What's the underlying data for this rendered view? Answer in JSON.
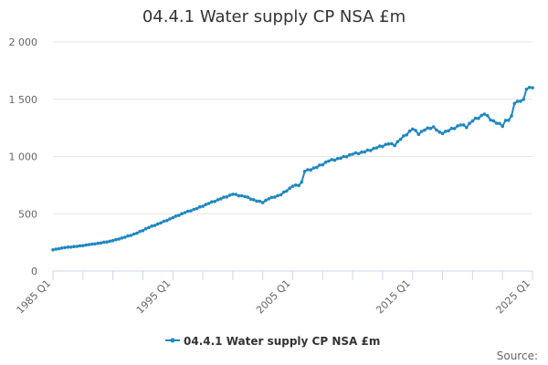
{
  "chart_data": {
    "type": "line",
    "title": "04.4.1 Water supply CP NSA £m",
    "series_name": "04.4.1 Water supply CP NSA £m",
    "color": "#1f87c1",
    "source_label": "Source:",
    "x_start_year": 1985,
    "x_end_year": 2025,
    "xlim": [
      1985,
      2025
    ],
    "ylim": [
      0,
      2000
    ],
    "y_ticks": [
      0,
      500,
      1000,
      1500,
      2000
    ],
    "y_tick_labels": [
      "0",
      "500",
      "1 000",
      "1 500",
      "2 000"
    ],
    "x_tick_labels": [
      {
        "year": 1985,
        "label": "1985 Q1"
      },
      {
        "year": 1995,
        "label": "1995 Q1"
      },
      {
        "year": 2005,
        "label": "2005 Q1"
      },
      {
        "year": 2015,
        "label": "2015 Q1"
      },
      {
        "year": 2025,
        "label": "2025 Q1"
      }
    ],
    "x_minor_ticks": [
      1987.5,
      1990,
      1992.5,
      1997.5,
      2000,
      2002.5,
      2007.5,
      2010,
      2012.5,
      2017.5,
      2020,
      2022.5
    ],
    "anchors": [
      [
        1985.0,
        185
      ],
      [
        1986.0,
        205
      ],
      [
        1987.0,
        215
      ],
      [
        1988.0,
        230
      ],
      [
        1989.0,
        245
      ],
      [
        1990.0,
        265
      ],
      [
        1991.0,
        295
      ],
      [
        1992.0,
        330
      ],
      [
        1993.0,
        380
      ],
      [
        1994.0,
        420
      ],
      [
        1995.0,
        465
      ],
      [
        1996.0,
        510
      ],
      [
        1997.0,
        545
      ],
      [
        1998.0,
        590
      ],
      [
        1999.0,
        630
      ],
      [
        2000.0,
        670
      ],
      [
        2001.0,
        650
      ],
      [
        2002.0,
        610
      ],
      [
        2002.5,
        600
      ],
      [
        2003.0,
        630
      ],
      [
        2004.0,
        665
      ],
      [
        2005.0,
        740
      ],
      [
        2005.7,
        755
      ],
      [
        2006.0,
        870
      ],
      [
        2007.0,
        905
      ],
      [
        2008.0,
        960
      ],
      [
        2009.0,
        985
      ],
      [
        2010.0,
        1020
      ],
      [
        2011.0,
        1040
      ],
      [
        2012.0,
        1075
      ],
      [
        2013.0,
        1110
      ],
      [
        2013.5,
        1100
      ],
      [
        2014.0,
        1150
      ],
      [
        2015.0,
        1240
      ],
      [
        2015.5,
        1200
      ],
      [
        2016.0,
        1230
      ],
      [
        2016.7,
        1260
      ],
      [
        2017.3,
        1200
      ],
      [
        2018.0,
        1225
      ],
      [
        2019.0,
        1275
      ],
      [
        2019.5,
        1260
      ],
      [
        2020.0,
        1310
      ],
      [
        2021.0,
        1370
      ],
      [
        2021.5,
        1325
      ],
      [
        2022.0,
        1290
      ],
      [
        2022.5,
        1270
      ],
      [
        2022.7,
        1310
      ],
      [
        2023.2,
        1320
      ],
      [
        2023.5,
        1470
      ],
      [
        2024.3,
        1490
      ],
      [
        2024.5,
        1595
      ],
      [
        2025.0,
        1600
      ]
    ]
  }
}
